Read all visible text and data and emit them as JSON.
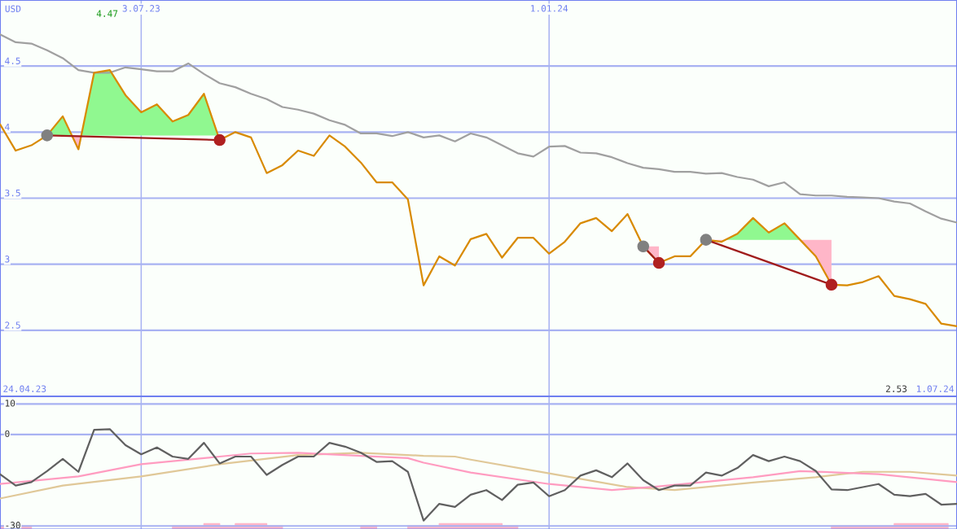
{
  "chart_data": [
    {
      "type": "line",
      "ylabel": "USD",
      "grid": true,
      "x": [
        "2023-05-01",
        "2023-05-08",
        "2023-05-15",
        "2023-05-22",
        "2023-05-29",
        "2023-06-05",
        "2023-06-12",
        "2023-06-19",
        "2023-06-26",
        "2023-07-03",
        "2023-07-10",
        "2023-07-17",
        "2023-07-24",
        "2023-07-31",
        "2023-08-07",
        "2023-08-14",
        "2023-08-21",
        "2023-08-28",
        "2023-09-04",
        "2023-09-11",
        "2023-09-18",
        "2023-09-25",
        "2023-10-02",
        "2023-10-09",
        "2023-10-16",
        "2023-10-23",
        "2023-10-30",
        "2023-11-06",
        "2023-11-13",
        "2023-11-20",
        "2023-11-27",
        "2023-12-04",
        "2023-12-11",
        "2023-12-18",
        "2023-12-25",
        "2024-01-01",
        "2024-01-08",
        "2024-01-15",
        "2024-01-22",
        "2024-01-29",
        "2024-02-05",
        "2024-02-12",
        "2024-02-19",
        "2024-02-26",
        "2024-03-04",
        "2024-03-11",
        "2024-03-18",
        "2024-03-25",
        "2024-04-01",
        "2024-04-08",
        "2024-04-15",
        "2024-04-22",
        "2024-04-29",
        "2024-05-06",
        "2024-05-13",
        "2024-05-20",
        "2024-05-27",
        "2024-06-03",
        "2024-06-10",
        "2024-06-17",
        "2024-06-24",
        "2024-07-01"
      ],
      "xlim": [
        "2023-05-01",
        "2024-07-01"
      ],
      "xticks": [
        {
          "value": "2023-07-03",
          "label": "3.07.23"
        },
        {
          "value": "2024-01-01",
          "label": "1.01.24"
        }
      ],
      "ylim": [
        2.0,
        5.0
      ],
      "yticks": [
        2.5,
        3,
        3.5,
        4,
        4.5
      ],
      "series": [
        {
          "color": "#a0a0a0",
          "values": [
            4.74,
            4.68,
            4.67,
            4.62,
            4.56,
            4.47,
            4.45,
            4.45,
            4.49,
            4.475,
            4.46,
            4.46,
            4.52,
            4.44,
            4.37,
            4.34,
            4.29,
            4.25,
            4.19,
            4.17,
            4.14,
            4.09,
            4.055,
            3.99,
            3.99,
            3.97,
            4.0,
            3.96,
            3.975,
            3.93,
            3.99,
            3.96,
            3.9,
            3.84,
            3.815,
            3.89,
            3.895,
            3.845,
            3.84,
            3.81,
            3.765,
            3.73,
            3.72,
            3.7,
            3.7,
            3.685,
            3.69,
            3.66,
            3.64,
            3.59,
            3.62,
            3.53,
            3.52,
            3.52,
            3.51,
            3.505,
            3.5,
            3.475,
            3.46,
            3.4,
            3.345,
            3.315
          ]
        },
        {
          "color": "#d88a00",
          "values": [
            4.06,
            3.86,
            3.9,
            3.975,
            4.12,
            3.87,
            4.45,
            4.47,
            4.28,
            4.15,
            4.21,
            4.08,
            4.13,
            4.29,
            3.94,
            4.0,
            3.96,
            3.69,
            3.75,
            3.86,
            3.82,
            3.975,
            3.89,
            3.77,
            3.62,
            3.62,
            3.49,
            2.84,
            3.06,
            2.99,
            3.19,
            3.23,
            3.05,
            3.2,
            3.2,
            3.08,
            3.17,
            3.31,
            3.35,
            3.25,
            3.38,
            3.135,
            3.01,
            3.06,
            3.06,
            3.185,
            3.17,
            3.23,
            3.35,
            3.24,
            3.31,
            3.185,
            3.06,
            2.845,
            2.84,
            2.865,
            2.91,
            2.76,
            2.735,
            2.7,
            2.55,
            2.53
          ]
        },
        {
          "color": "#a01c1c",
          "x": [
            "2023-05-22",
            "2023-08-07"
          ],
          "values": [
            3.975,
            3.94
          ]
        },
        {
          "color": "#a01c1c",
          "x": [
            "2024-02-12",
            "2024-02-19"
          ],
          "values": [
            3.135,
            3.01
          ]
        },
        {
          "color": "#a01c1c",
          "x": [
            "2024-03-11",
            "2024-05-06"
          ],
          "values": [
            3.185,
            2.845
          ]
        },
        {
          "type": "scatter",
          "color": "#808080",
          "marker": "circle",
          "x": [
            "2023-05-22",
            "2024-02-12",
            "2024-03-11"
          ],
          "values": [
            3.975,
            3.135,
            3.185
          ]
        },
        {
          "type": "scatter",
          "color": "#b02020",
          "marker": "circle",
          "x": [
            "2023-08-07",
            "2024-02-19",
            "2024-05-06"
          ],
          "values": [
            3.94,
            3.01,
            2.845
          ]
        }
      ],
      "annotations": [
        "4.47",
        "2.53",
        "24.04.23",
        "1.07.24"
      ]
    },
    {
      "type": "line",
      "grid": true,
      "tick_labels": "y",
      "x": [
        "2023-05-01",
        "2023-05-08",
        "2023-05-15",
        "2023-05-22",
        "2023-05-29",
        "2023-06-05",
        "2023-06-12",
        "2023-06-19",
        "2023-06-26",
        "2023-07-03",
        "2023-07-10",
        "2023-07-17",
        "2023-07-24",
        "2023-07-31",
        "2023-08-07",
        "2023-08-14",
        "2023-08-21",
        "2023-08-28",
        "2023-09-04",
        "2023-09-11",
        "2023-09-18",
        "2023-09-25",
        "2023-10-02",
        "2023-10-09",
        "2023-10-16",
        "2023-10-23",
        "2023-10-30",
        "2023-11-06",
        "2023-11-13",
        "2023-11-20",
        "2023-11-27",
        "2023-12-04",
        "2023-12-11",
        "2023-12-18",
        "2023-12-25",
        "2024-01-01",
        "2024-01-08",
        "2024-01-15",
        "2024-01-22",
        "2024-01-29",
        "2024-02-05",
        "2024-02-12",
        "2024-02-19",
        "2024-02-26",
        "2024-03-04",
        "2024-03-11",
        "2024-03-18",
        "2024-03-25",
        "2024-04-01",
        "2024-04-08",
        "2024-04-15",
        "2024-04-22",
        "2024-04-29",
        "2024-05-06",
        "2024-05-13",
        "2024-05-20",
        "2024-05-27",
        "2024-06-03",
        "2024-06-10",
        "2024-06-17",
        "2024-06-24",
        "2024-07-01"
      ],
      "xlim": [
        "2023-05-01",
        "2024-07-01"
      ],
      "xticks": [
        {
          "value": "2023-07-03",
          "label": null
        },
        {
          "value": "2024-01-01",
          "label": null
        }
      ],
      "ylim": [
        -31,
        12.5
      ],
      "yticks": [
        -30,
        0,
        10
      ],
      "series": [
        {
          "type": "area",
          "color": "#ffb6c8",
          "x": [
            "2023-05-01",
            "2023-05-15",
            null,
            "2023-07-17",
            "2023-07-31",
            "2023-07-31",
            "2023-08-07",
            "2023-08-07",
            "2023-08-14",
            "2023-08-14",
            "2023-08-28",
            "2023-08-28",
            "2023-09-04",
            null,
            "2023-10-09",
            "2023-10-16",
            null,
            "2023-10-30",
            "2023-11-13",
            "2023-11-13",
            "2023-12-11",
            "2023-12-11",
            "2023-12-18",
            null,
            "2024-05-06",
            "2024-06-03",
            "2024-06-03",
            "2024-06-27",
            "2024-06-27"
          ],
          "values": [
            -30,
            -30,
            null,
            -30,
            -30,
            -29.25,
            -29.25,
            -30,
            -30,
            -29.25,
            -29.25,
            -30,
            -30,
            null,
            -30,
            -30,
            null,
            -30,
            -30,
            -29.25,
            -29.25,
            -30,
            -30,
            null,
            -30,
            -30,
            -29.25,
            -29.25,
            -31
          ]
        },
        {
          "color": "#e0c898",
          "x": [
            "2023-05-01",
            "2023-05-29",
            "2023-07-03",
            "2023-08-07",
            "2023-09-11",
            "2023-10-09",
            "2023-11-06",
            "2023-11-20",
            "2023-11-27",
            "2024-01-01",
            "2024-02-05",
            "2024-02-26",
            "2024-04-01",
            "2024-04-29",
            "2024-05-20",
            "2024-06-10",
            "2024-07-01"
          ],
          "values": [
            -21,
            -16.75,
            -13.75,
            -9.75,
            -6.75,
            -6,
            -7,
            -7.25,
            -8.25,
            -12.75,
            -17.25,
            -18.25,
            -15.75,
            -14,
            -12.25,
            -12.25,
            -13.5
          ]
        },
        {
          "color": "#ff9cc0",
          "x": [
            "2023-05-01",
            "2023-06-05",
            "2023-07-03",
            "2023-08-07",
            "2023-08-21",
            "2023-09-11",
            "2023-10-09",
            "2023-10-30",
            "2023-11-06",
            "2023-11-27",
            "2024-01-01",
            "2024-01-29",
            "2024-02-19",
            "2024-04-01",
            "2024-04-22",
            "2024-05-27",
            "2024-07-01"
          ],
          "values": [
            -16.25,
            -13.75,
            -9.75,
            -7.25,
            -6.25,
            -6,
            -7,
            -7.75,
            -9.25,
            -12.5,
            -16.25,
            -18.25,
            -17,
            -14,
            -12,
            -13,
            -15.6
          ]
        },
        {
          "color": "#606060",
          "values": [
            -13,
            -16.75,
            -15.6,
            -12,
            -8,
            -12.25,
            1.5,
            1.75,
            -3.5,
            -6.5,
            -4.25,
            -7.25,
            -8,
            -2.75,
            -9.5,
            -7.25,
            -7.25,
            -13.25,
            -10,
            -7.25,
            -7.25,
            -2.75,
            -4,
            -6,
            -9,
            -8.75,
            -12.25,
            -28.25,
            -22.75,
            -23.75,
            -19.75,
            -18.25,
            -21.5,
            -16.5,
            -15.75,
            -20.25,
            -18.25,
            -13.5,
            -11.75,
            -14,
            -9.5,
            -15,
            -18.25,
            -16.75,
            -16.75,
            -12.5,
            -13.5,
            -11,
            -6.75,
            -8.75,
            -7.25,
            -8.75,
            -12,
            -18,
            -18.25,
            -17.25,
            -16.25,
            -19.75,
            -20.25,
            -19.5,
            -23,
            -22.75
          ]
        }
      ]
    }
  ]
}
